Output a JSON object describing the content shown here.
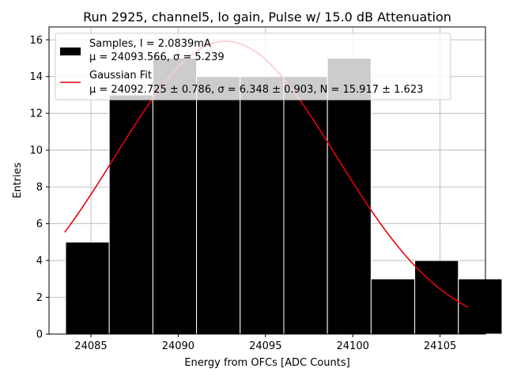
{
  "chart_data": {
    "type": "bar",
    "title": "Run 2925, channel5, lo gain, Pulse w/ 15.0 dB Attenuation",
    "xlabel": "Energy from OFCs [ADC Counts]",
    "ylabel": "Entries",
    "xlim": [
      24082.6,
      24107.6
    ],
    "ylim": [
      0,
      16.7
    ],
    "xticks": [
      24085,
      24090,
      24095,
      24100,
      24105
    ],
    "yticks": [
      0,
      2,
      4,
      6,
      8,
      10,
      12,
      14,
      16
    ],
    "grid": true,
    "legend_position": "top-left",
    "histogram": {
      "name": "Samples, I = 2.0839mA",
      "stats": "μ = 24093.566, σ = 5.239",
      "color": "#000000",
      "bin_width": 2.5,
      "bins": [
        {
          "x": 24084.8,
          "count": 5
        },
        {
          "x": 24087.3,
          "count": 13
        },
        {
          "x": 24089.8,
          "count": 15
        },
        {
          "x": 24092.3,
          "count": 14
        },
        {
          "x": 24094.8,
          "count": 14
        },
        {
          "x": 24097.3,
          "count": 14
        },
        {
          "x": 24099.8,
          "count": 15
        },
        {
          "x": 24102.3,
          "count": 3
        },
        {
          "x": 24104.8,
          "count": 4
        },
        {
          "x": 24107.3,
          "count": 3
        }
      ]
    },
    "fit": {
      "name": "Gaussian Fit",
      "stats": "μ = 24092.725 ± 0.786, σ = 6.348 ± 0.903, N = 15.917 ± 1.623",
      "mu": 24092.725,
      "sigma": 6.348,
      "N": 15.917,
      "x_range": [
        24083.5,
        24106.6
      ],
      "color": "#e8000b"
    }
  }
}
